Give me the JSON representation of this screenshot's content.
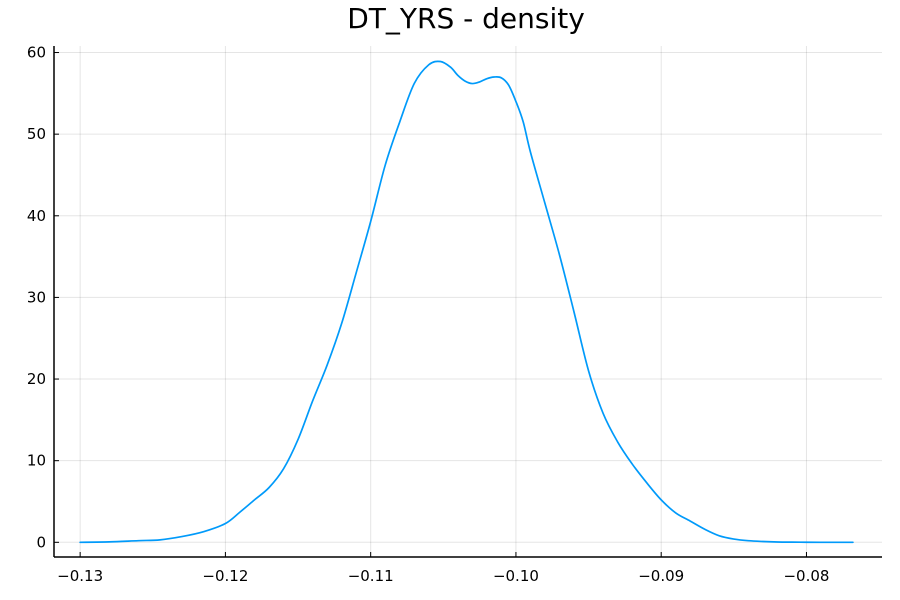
{
  "chart_data": {
    "type": "line",
    "title": "DT_YRS - density",
    "xlabel": "",
    "ylabel": "",
    "xlim": [
      -0.1318,
      -0.0748
    ],
    "ylim": [
      -1.8,
      60.8
    ],
    "x_ticks": [
      -0.13,
      -0.12,
      -0.11,
      -0.1,
      -0.09,
      -0.08
    ],
    "x_tick_labels": [
      "−0.13",
      "−0.12",
      "−0.11",
      "−0.10",
      "−0.09",
      "−0.08"
    ],
    "y_ticks": [
      0,
      10,
      20,
      30,
      40,
      50,
      60
    ],
    "y_tick_labels": [
      "0",
      "10",
      "20",
      "30",
      "40",
      "50",
      "60"
    ],
    "grid": true,
    "legend": "none",
    "series": [
      {
        "color": "#009AFA",
        "x": [
          -0.13,
          -0.128,
          -0.126,
          -0.1245,
          -0.123,
          -0.1215,
          -0.12,
          -0.119,
          -0.118,
          -0.117,
          -0.116,
          -0.115,
          -0.114,
          -0.113,
          -0.112,
          -0.111,
          -0.11,
          -0.109,
          -0.108,
          -0.107,
          -0.106,
          -0.1052,
          -0.1045,
          -0.104,
          -0.1035,
          -0.103,
          -0.1025,
          -0.102,
          -0.1015,
          -0.101,
          -0.1005,
          -0.1,
          -0.0995,
          -0.099,
          -0.098,
          -0.097,
          -0.096,
          -0.095,
          -0.094,
          -0.093,
          -0.092,
          -0.091,
          -0.09,
          -0.089,
          -0.088,
          -0.087,
          -0.086,
          -0.085,
          -0.084,
          -0.083,
          -0.082,
          -0.081,
          -0.08,
          -0.079,
          -0.078,
          -0.0768
        ],
        "y": [
          0.0,
          0.05,
          0.2,
          0.3,
          0.7,
          1.3,
          2.3,
          3.7,
          5.2,
          6.7,
          9.0,
          12.6,
          17.3,
          21.7,
          26.8,
          33.0,
          39.3,
          46.2,
          51.5,
          56.2,
          58.5,
          58.9,
          58.2,
          57.2,
          56.5,
          56.2,
          56.4,
          56.8,
          57.0,
          56.9,
          56.0,
          54.0,
          51.5,
          47.8,
          41.5,
          35.2,
          28.2,
          21.0,
          15.8,
          12.3,
          9.6,
          7.3,
          5.2,
          3.6,
          2.6,
          1.6,
          0.8,
          0.4,
          0.2,
          0.1,
          0.04,
          0.02,
          0.01,
          0.0,
          0.0,
          0.0
        ]
      }
    ]
  }
}
